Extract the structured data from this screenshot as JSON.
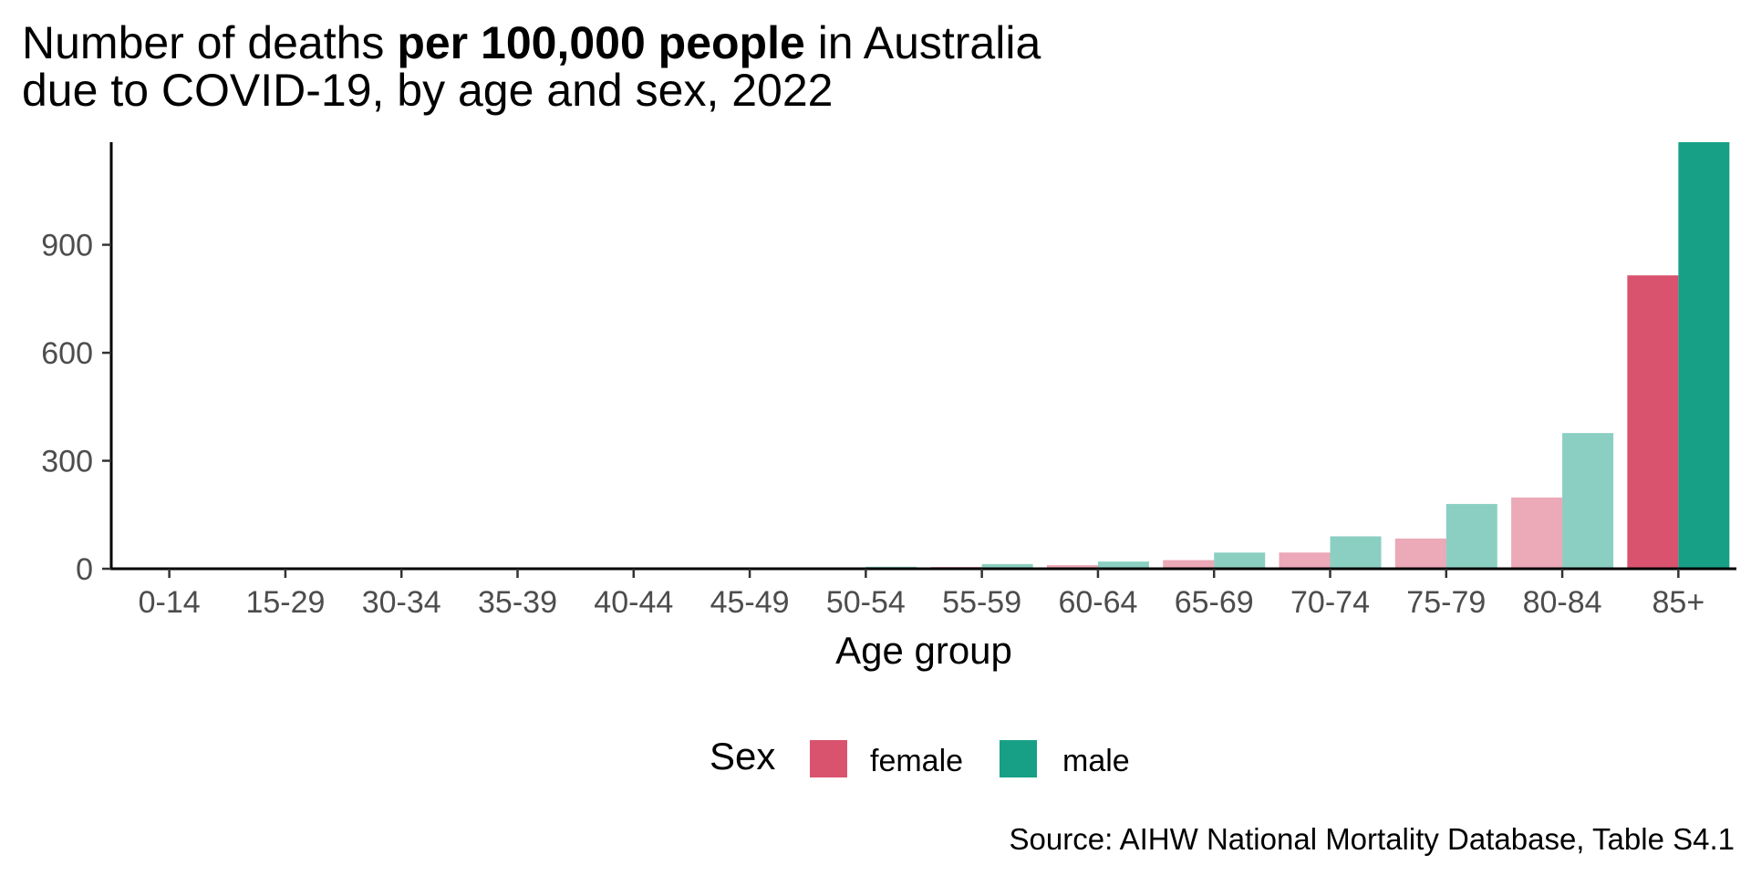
{
  "chart_data": {
    "type": "bar",
    "title": {
      "line1_prefix": "Number of deaths ",
      "line1_bold": "per 100,000 people",
      "line1_suffix": " in Australia",
      "line2": "due to COVID-19, by age and sex, 2022"
    },
    "xlabel": "Age group",
    "ylabel": "",
    "ylim": [
      0,
      1185
    ],
    "yticks": [
      0,
      300,
      600,
      900
    ],
    "grid": false,
    "categories": [
      "0-14",
      "15-29",
      "30-34",
      "35-39",
      "40-44",
      "45-49",
      "50-54",
      "55-59",
      "60-64",
      "65-69",
      "70-74",
      "75-79",
      "80-84",
      "85+"
    ],
    "series": [
      {
        "name": "female",
        "color": "#d9536f",
        "values": [
          0.3,
          0.3,
          0.5,
          0.6,
          1.0,
          1.5,
          2.5,
          5,
          10,
          24,
          45,
          84,
          198,
          815
        ]
      },
      {
        "name": "male",
        "color": "#17a086",
        "values": [
          0.3,
          0.5,
          0.8,
          1.2,
          2.0,
          3.0,
          5.5,
          13,
          20,
          45,
          90,
          180,
          377,
          1185
        ]
      }
    ],
    "faded_alpha_note": "bars for all age groups except 85+ are drawn lighter",
    "legend": {
      "title": "Sex",
      "placement": "bottom",
      "items": [
        "female",
        "male"
      ]
    },
    "caption": "Source: AIHW National Mortality Database, Table S4.1"
  }
}
